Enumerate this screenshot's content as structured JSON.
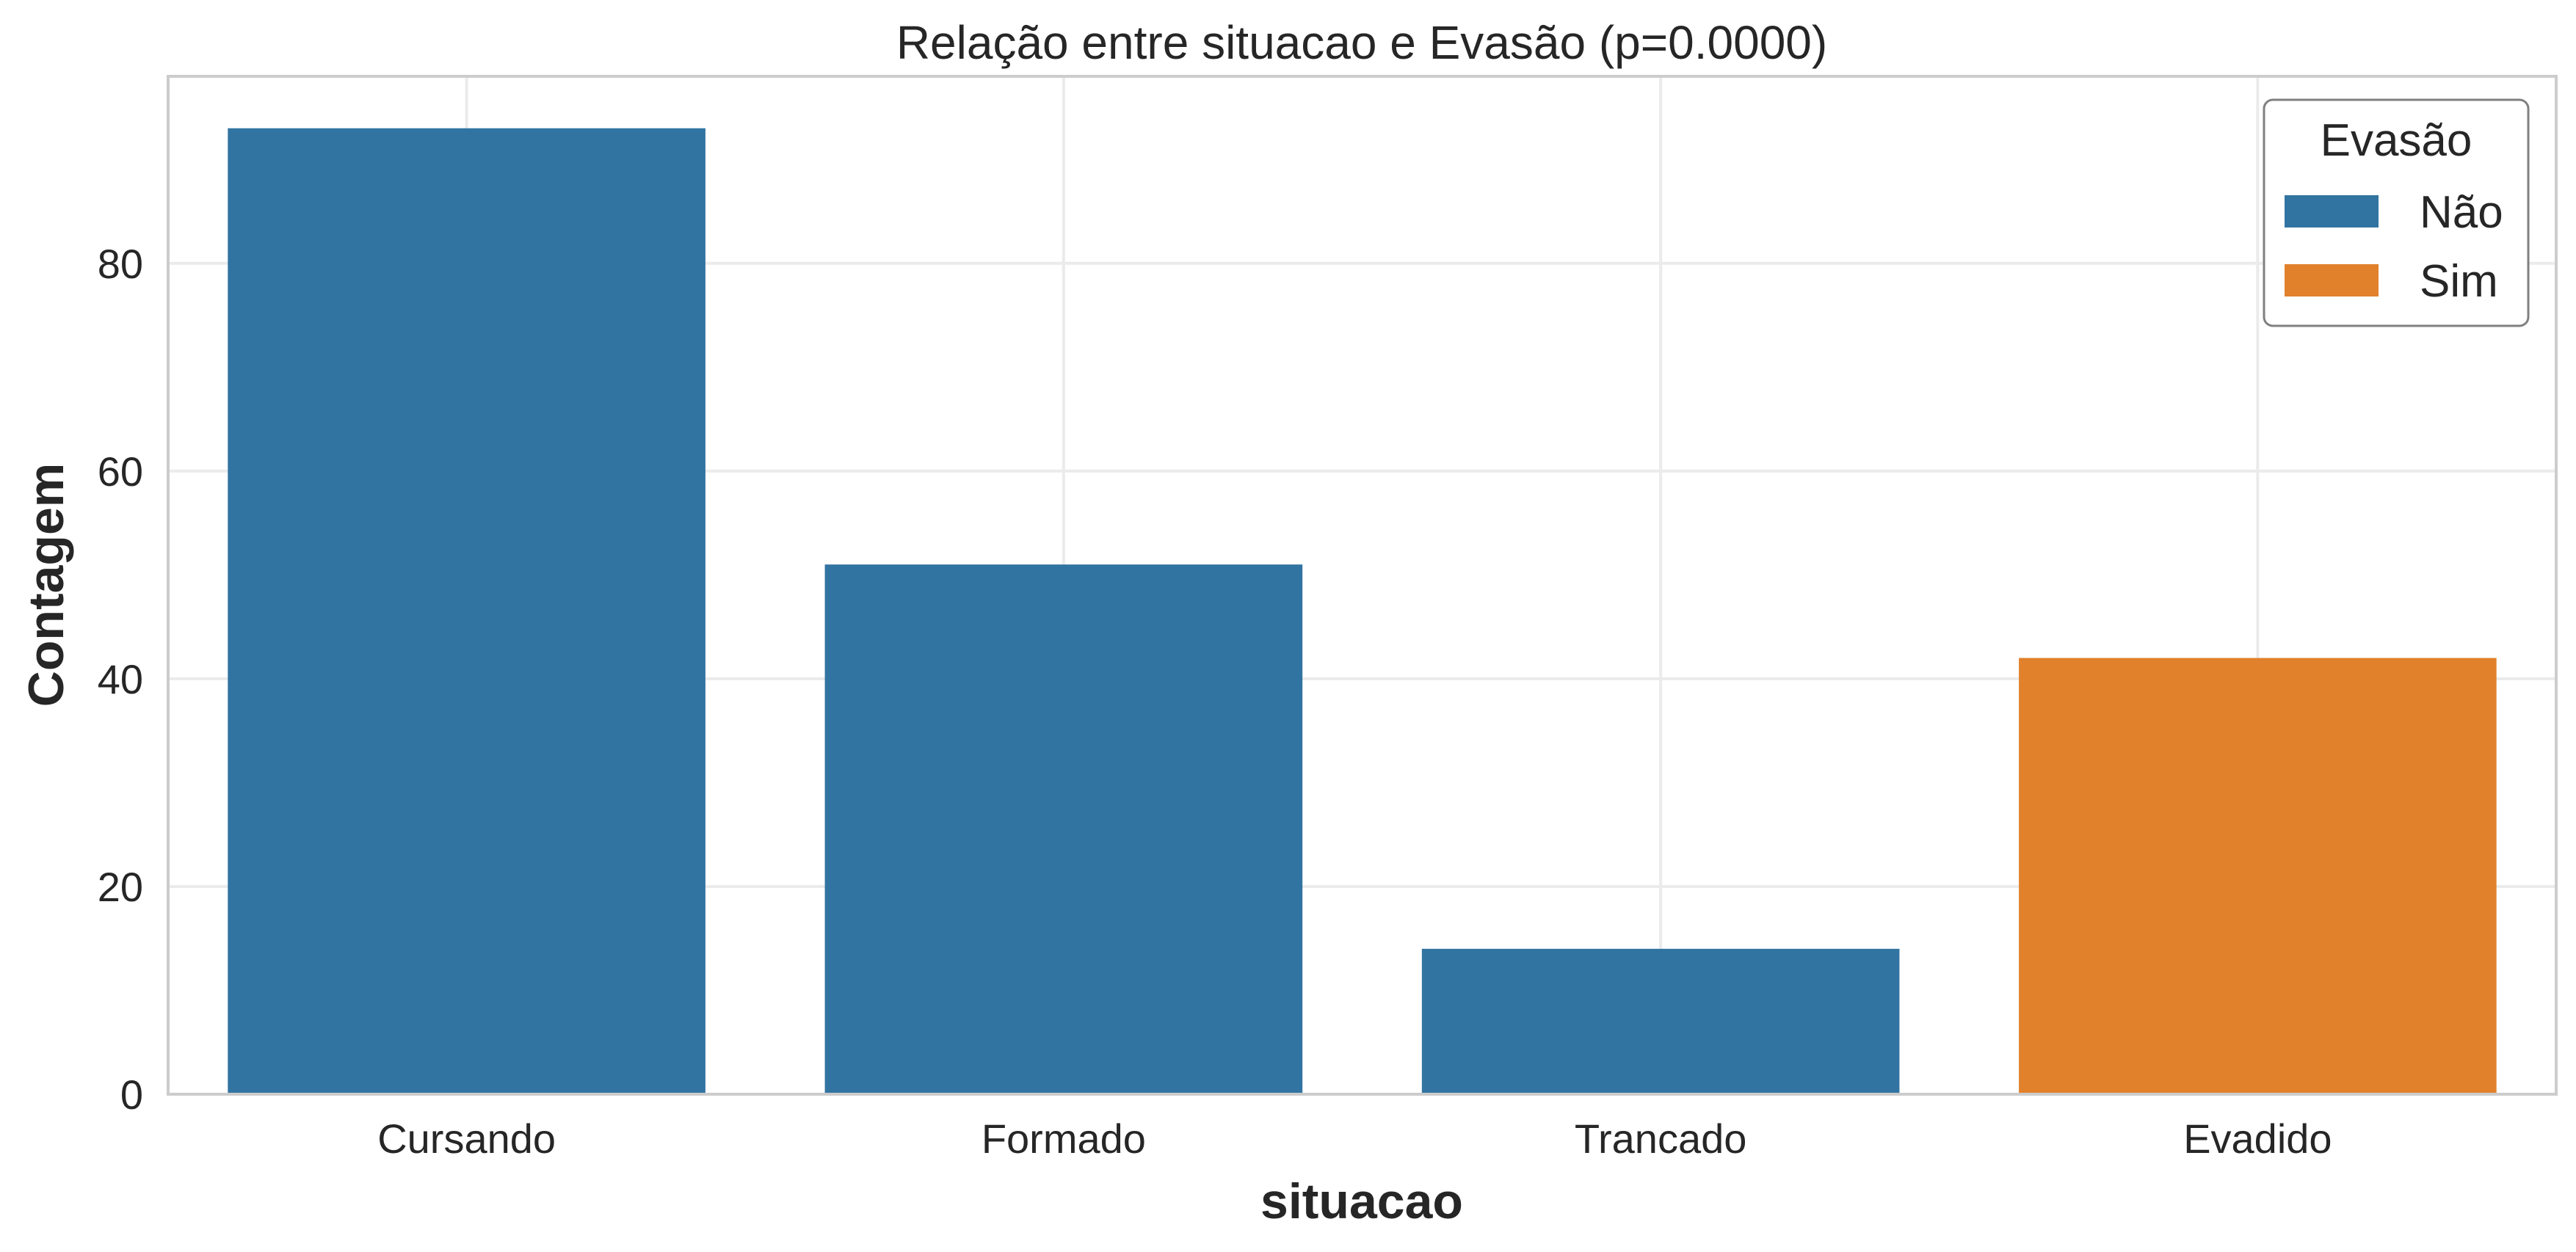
{
  "chart_data": {
    "type": "bar",
    "title": "Relação entre situacao e Evasão (p=0.0000)",
    "xlabel": "situacao",
    "ylabel": "Contagem",
    "categories": [
      "Cursando",
      "Formado",
      "Trancado",
      "Evadido"
    ],
    "values": [
      93,
      51,
      14,
      42
    ],
    "bar_series": [
      "Não",
      "Não",
      "Não",
      "Sim"
    ],
    "ylim": [
      0,
      98
    ],
    "yticks": [
      0,
      20,
      40,
      60,
      80
    ],
    "grid": true,
    "legend": {
      "title": "Evasão",
      "position": "top-right",
      "entries": [
        {
          "label": "Não",
          "color": "#3274a1"
        },
        {
          "label": "Sim",
          "color": "#e1812c"
        }
      ]
    }
  }
}
